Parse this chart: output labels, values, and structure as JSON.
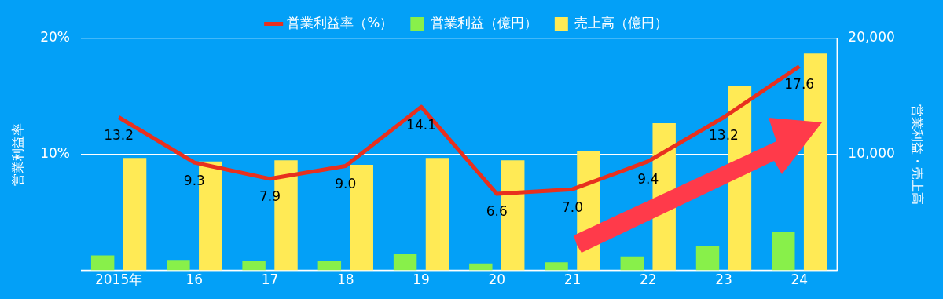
{
  "chart_data": {
    "type": "bar",
    "categories": [
      "2015年",
      "16",
      "17",
      "18",
      "19",
      "20",
      "21",
      "22",
      "23",
      "24"
    ],
    "ylabel": "営業利益率",
    "y2label": "営業利益・売上高",
    "series": [
      {
        "name": "営業利益率（%）",
        "type": "line",
        "axis": "y",
        "color": "#e8301e",
        "values": [
          13.2,
          9.3,
          7.9,
          9.0,
          14.1,
          6.6,
          7.0,
          9.4,
          13.2,
          17.6
        ],
        "value_labels": [
          "13.2",
          "9.3",
          "7.9",
          "9.0",
          "14.1",
          "6.6",
          "7.0",
          "9.4",
          "13.2",
          "17.6"
        ]
      },
      {
        "name": "営業利益（億円）",
        "axis": "y2",
        "color": "#88f04a",
        "values": [
          1300,
          900,
          800,
          800,
          1400,
          600,
          700,
          1200,
          2100,
          3300
        ]
      },
      {
        "name": "売上高（億円）",
        "axis": "y2",
        "color": "#ffea55",
        "values": [
          9700,
          9400,
          9500,
          9100,
          9700,
          9500,
          10300,
          12700,
          15900,
          18700
        ]
      }
    ],
    "ylim": [
      0,
      20
    ],
    "yticks": [
      {
        "value": 0,
        "label": null
      },
      {
        "value": 10,
        "label": "10%"
      },
      {
        "value": 20,
        "label": "20%"
      }
    ],
    "y2lim": [
      0,
      20000
    ],
    "y2ticks": [
      {
        "value": 0,
        "label": null
      },
      {
        "value": 10000,
        "label": "10,000"
      },
      {
        "value": 20000,
        "label": "20,000"
      }
    ],
    "grid": "y",
    "legend": "top",
    "marker": "none",
    "line_style": "solid"
  }
}
